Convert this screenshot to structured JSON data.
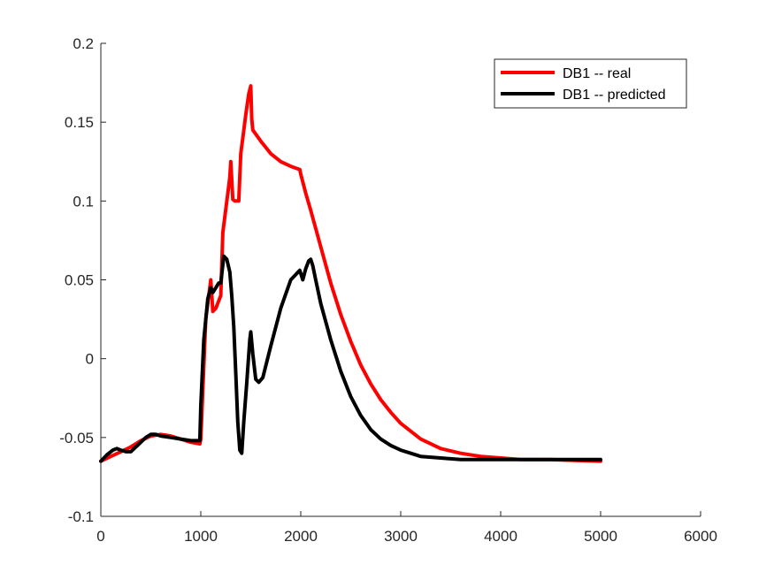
{
  "chart_data": {
    "type": "line",
    "title": "",
    "xlabel": "",
    "ylabel": "",
    "xlim": [
      0,
      6000
    ],
    "ylim": [
      -0.1,
      0.2
    ],
    "xticks": [
      0,
      1000,
      2000,
      3000,
      4000,
      5000,
      6000
    ],
    "xtick_labels": [
      "0",
      "1000",
      "2000",
      "3000",
      "4000",
      "5000",
      "6000"
    ],
    "yticks": [
      -0.1,
      -0.05,
      0,
      0.05,
      0.1,
      0.15,
      0.2
    ],
    "ytick_labels": [
      "-0.1",
      "-0.05",
      "0",
      "0.05",
      "0.1",
      "0.15",
      "0.2"
    ],
    "grid": false,
    "legend_position": "top-right",
    "series": [
      {
        "name": "DB1 -- real",
        "color": "#ff0000",
        "x": [
          0,
          100,
          200,
          300,
          400,
          500,
          600,
          700,
          800,
          900,
          990,
          1000,
          1050,
          1100,
          1120,
          1150,
          1200,
          1220,
          1250,
          1290,
          1300,
          1320,
          1340,
          1380,
          1400,
          1420,
          1450,
          1480,
          1500,
          1510,
          1520,
          1600,
          1700,
          1800,
          1900,
          1990,
          2000,
          2050,
          2100,
          2200,
          2300,
          2400,
          2500,
          2600,
          2700,
          2800,
          2900,
          3000,
          3200,
          3400,
          3600,
          3800,
          4000,
          4200,
          4500,
          5000
        ],
        "y": [
          -0.065,
          -0.062,
          -0.059,
          -0.056,
          -0.052,
          -0.049,
          -0.048,
          -0.049,
          -0.051,
          -0.053,
          -0.054,
          -0.051,
          0.025,
          0.05,
          0.03,
          0.032,
          0.04,
          0.08,
          0.095,
          0.115,
          0.125,
          0.101,
          0.1,
          0.1,
          0.13,
          0.14,
          0.155,
          0.168,
          0.173,
          0.152,
          0.145,
          0.138,
          0.13,
          0.125,
          0.122,
          0.12,
          0.117,
          0.105,
          0.094,
          0.071,
          0.048,
          0.028,
          0.011,
          -0.004,
          -0.016,
          -0.026,
          -0.034,
          -0.041,
          -0.051,
          -0.057,
          -0.06,
          -0.062,
          -0.063,
          -0.064,
          -0.064,
          -0.065
        ]
      },
      {
        "name": "DB1 -- predicted",
        "color": "#000000",
        "x": [
          0,
          60,
          120,
          160,
          200,
          250,
          300,
          350,
          400,
          450,
          500,
          550,
          600,
          700,
          800,
          900,
          990,
          1000,
          1030,
          1070,
          1100,
          1120,
          1150,
          1180,
          1200,
          1230,
          1260,
          1290,
          1310,
          1330,
          1350,
          1370,
          1390,
          1410,
          1430,
          1460,
          1490,
          1500,
          1520,
          1550,
          1580,
          1620,
          1700,
          1800,
          1900,
          1990,
          2020,
          2050,
          2080,
          2100,
          2120,
          2150,
          2200,
          2300,
          2400,
          2500,
          2600,
          2700,
          2800,
          2900,
          3000,
          3200,
          3400,
          3600,
          3800,
          4000,
          4500,
          5000
        ],
        "y": [
          -0.065,
          -0.061,
          -0.058,
          -0.057,
          -0.058,
          -0.059,
          -0.059,
          -0.056,
          -0.053,
          -0.05,
          -0.048,
          -0.048,
          -0.049,
          -0.05,
          -0.051,
          -0.052,
          -0.052,
          -0.03,
          0.012,
          0.038,
          0.045,
          0.042,
          0.045,
          0.048,
          0.048,
          0.065,
          0.063,
          0.055,
          0.04,
          0.02,
          -0.01,
          -0.04,
          -0.058,
          -0.06,
          -0.04,
          -0.015,
          0.012,
          0.017,
          0.003,
          -0.013,
          -0.015,
          -0.012,
          0.008,
          0.032,
          0.05,
          0.056,
          0.05,
          0.057,
          0.062,
          0.063,
          0.059,
          0.05,
          0.035,
          0.012,
          -0.008,
          -0.024,
          -0.036,
          -0.045,
          -0.051,
          -0.055,
          -0.058,
          -0.062,
          -0.063,
          -0.064,
          -0.064,
          -0.064,
          -0.064,
          -0.064
        ]
      }
    ]
  }
}
